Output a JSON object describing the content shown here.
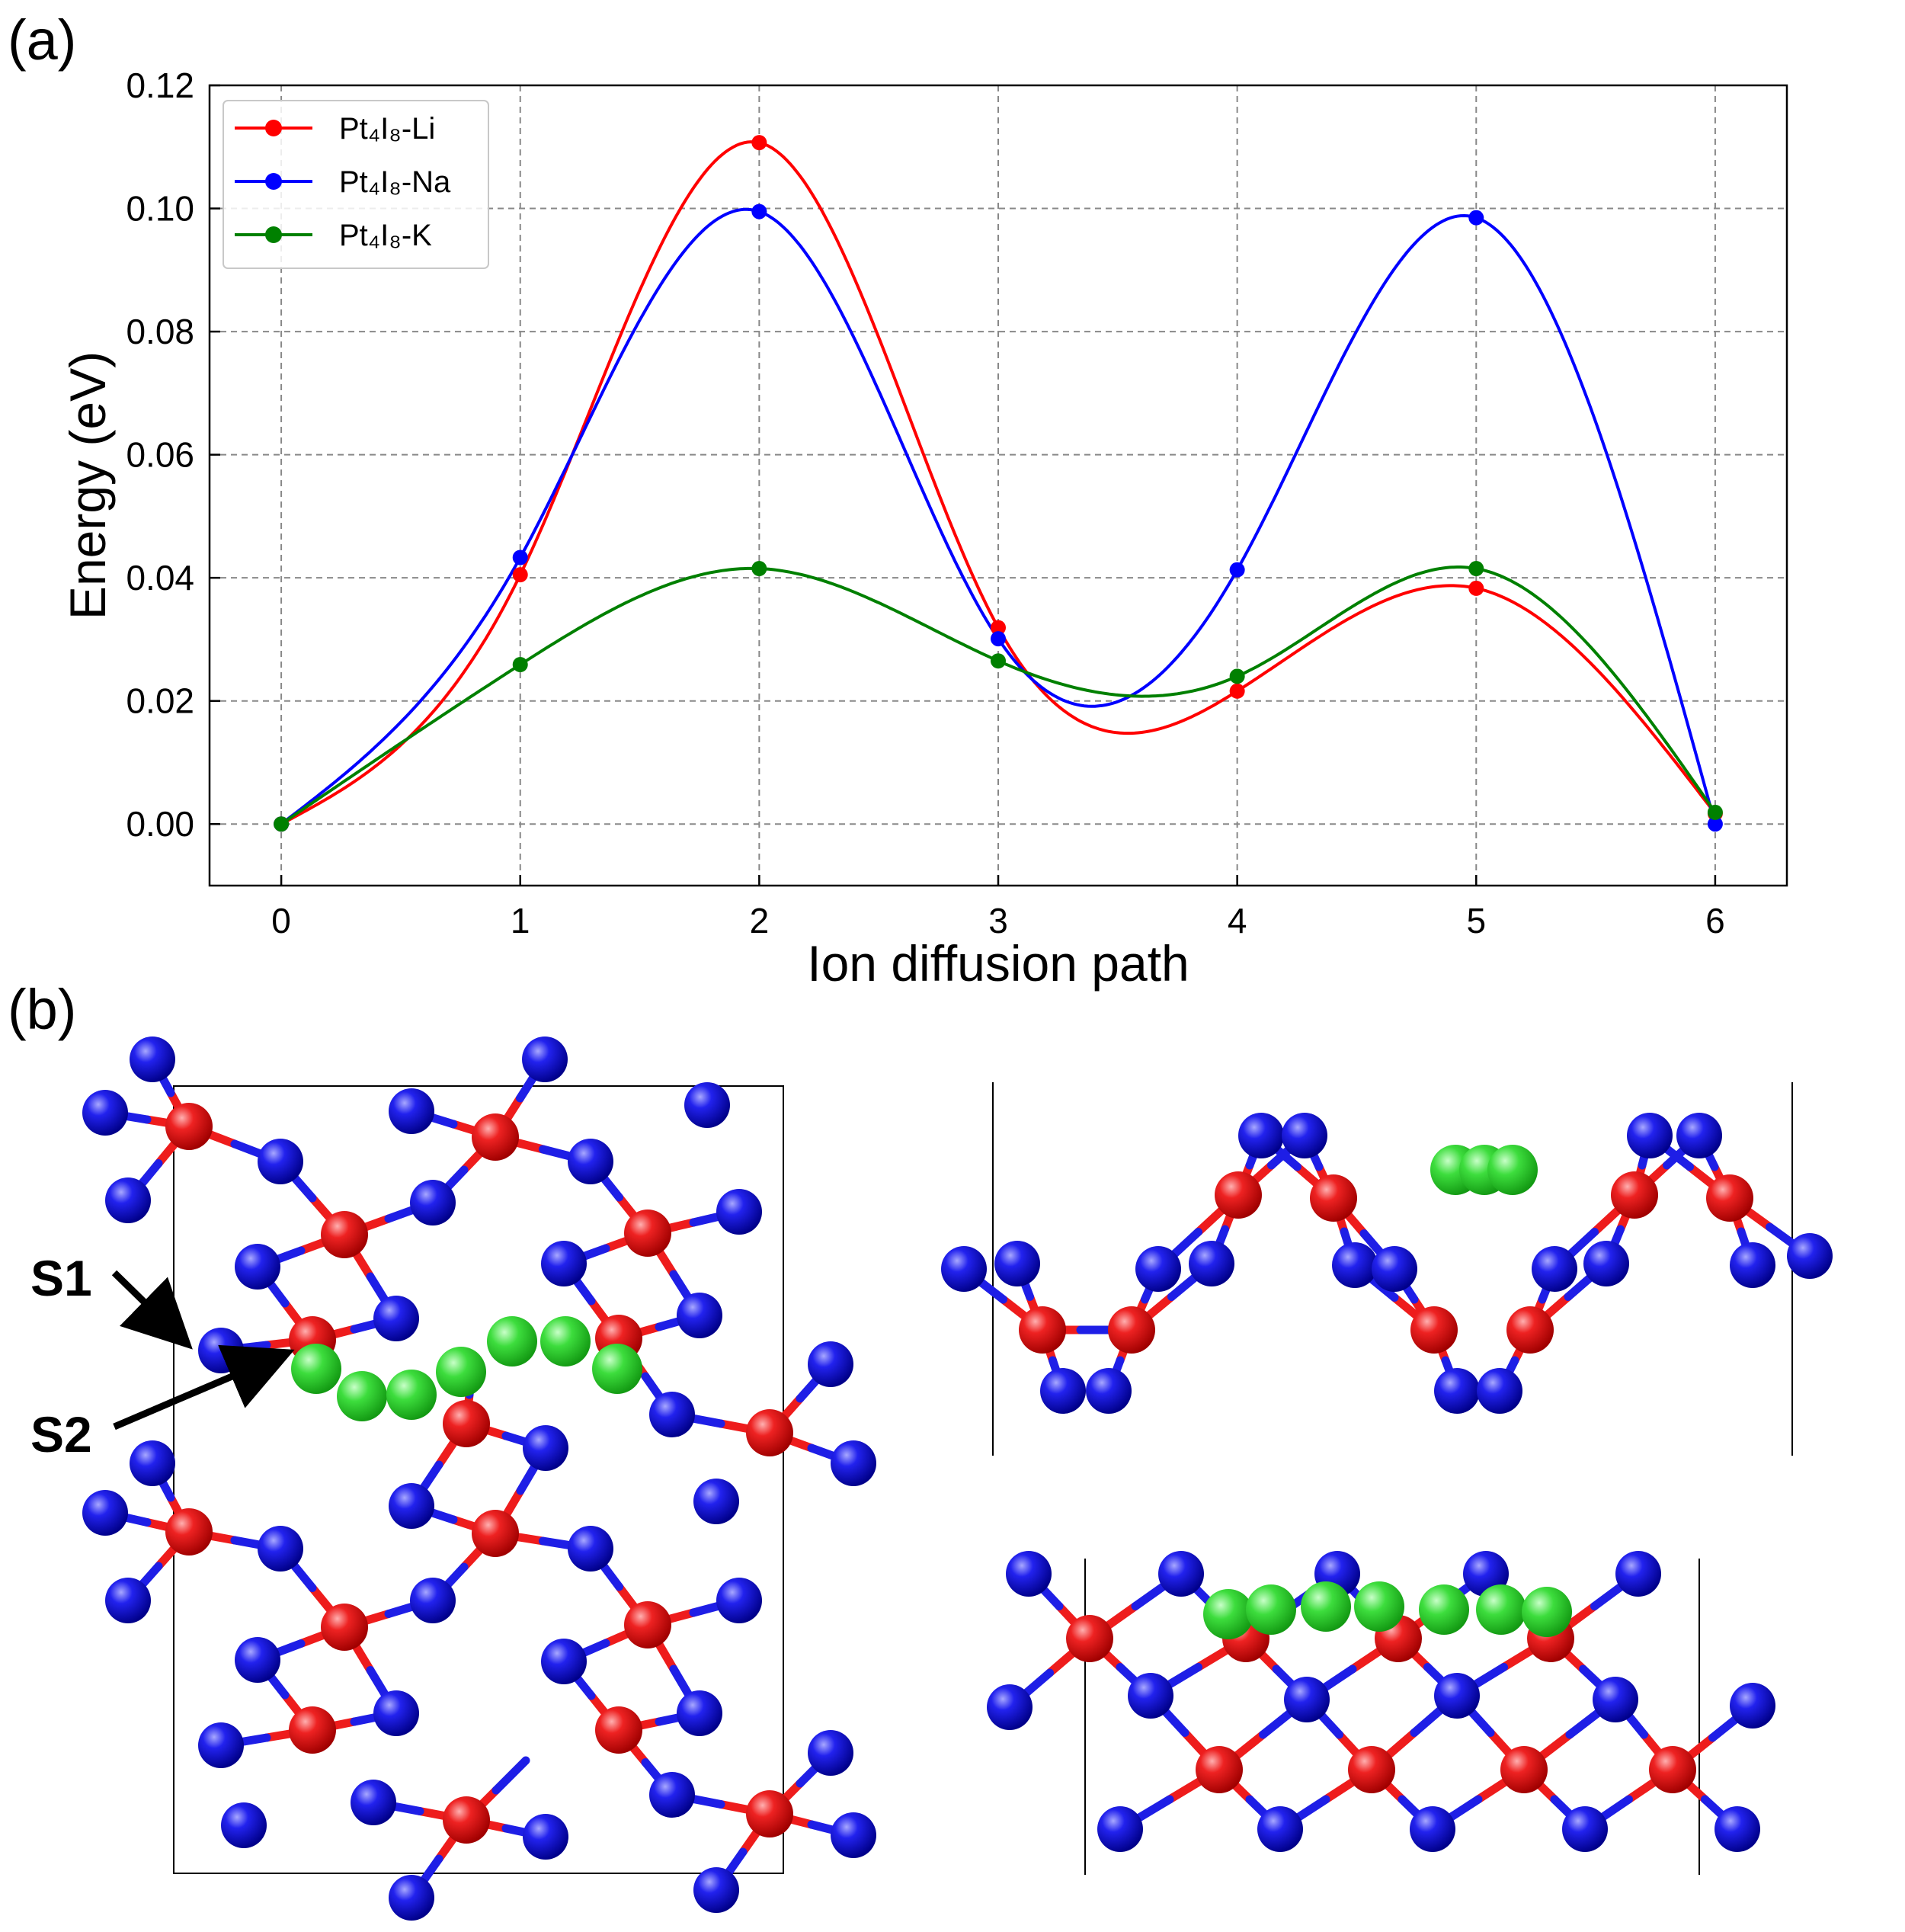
{
  "panel_a": {
    "label": "(a)"
  },
  "panel_b": {
    "label": "(b)",
    "annotations": [
      "S1",
      "S2"
    ],
    "atom_colors": {
      "pt": "#ee1c1c",
      "i": "#1e1ee6",
      "ion": "#33dd33"
    }
  },
  "chart_data": {
    "type": "line",
    "xlabel": "Ion diffusion path",
    "ylabel": "Energy (eV)",
    "xlim": [
      -0.3,
      6.3
    ],
    "ylim": [
      -0.01,
      0.12
    ],
    "x_ticks": [
      "0",
      "1",
      "2",
      "3",
      "4",
      "5",
      "6"
    ],
    "y_ticks": [
      "0.00",
      "0.02",
      "0.04",
      "0.06",
      "0.08",
      "0.10",
      "0.12"
    ],
    "grid": true,
    "legend_position": "top-left",
    "x": [
      0,
      1,
      2,
      3,
      4,
      5,
      6
    ],
    "series": [
      {
        "name": "Pt₄I₈-Li",
        "color": "#ff0000",
        "values": [
          0.0,
          0.0405,
          0.1107,
          0.0319,
          0.0216,
          0.0383,
          0.0017
        ]
      },
      {
        "name": "Pt₄I₈-Na",
        "color": "#0000ff",
        "values": [
          0.0,
          0.0433,
          0.0995,
          0.0301,
          0.0413,
          0.0985,
          0.0
        ]
      },
      {
        "name": "Pt₄I₈-K",
        "color": "#008000",
        "values": [
          0.0,
          0.0259,
          0.0415,
          0.0265,
          0.024,
          0.0415,
          0.0019
        ]
      }
    ]
  }
}
